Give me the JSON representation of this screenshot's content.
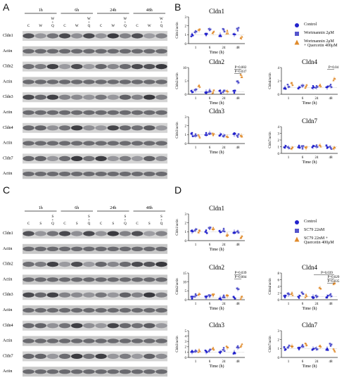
{
  "panels": {
    "A": "A",
    "B": "B",
    "C": "C",
    "D": "D"
  },
  "blotA": {
    "timepoints": [
      "1h",
      "6h",
      "24h",
      "48h"
    ],
    "lanes": [
      "C",
      "W",
      "W\n+\nQ",
      "C",
      "W",
      "W\n+\nQ",
      "C",
      "W",
      "W\n+\nQ",
      "C",
      "W",
      "W\n+\nQ"
    ],
    "rows": [
      "Cldn1",
      "Actin",
      "Cldn2",
      "Actin",
      "Cldn3",
      "Actin",
      "Cldn4",
      "Actin",
      "Cldn7",
      "Actin"
    ]
  },
  "blotC": {
    "timepoints": [
      "1h",
      "6h",
      "24h",
      "48h"
    ],
    "lanes": [
      "C",
      "S",
      "S\n+\nQ",
      "C",
      "S",
      "S\n+\nQ",
      "C",
      "S",
      "S\n+\nQ",
      "C",
      "S",
      "S\n+\nQ"
    ],
    "rows": [
      "Cldn1",
      "Actin",
      "Cldn2",
      "Actin",
      "Cldn3",
      "Actin",
      "Cldn4",
      "Actin",
      "Cldn7",
      "Actin"
    ]
  },
  "legendB": [
    {
      "label": "Control",
      "color": "#2222cc",
      "shape": "circle"
    },
    {
      "label": "Wortmannin 2μM",
      "color": "#5555cc",
      "shape": "square"
    },
    {
      "label": "Wortmannin 2μM\n+ Quercetin 400μM",
      "color": "#e08a2a",
      "shape": "triangle"
    }
  ],
  "legendD": [
    {
      "label": "Control",
      "color": "#2222cc",
      "shape": "circle"
    },
    {
      "label": "SC79 22nM",
      "color": "#5555cc",
      "shape": "square"
    },
    {
      "label": "SC79 22nM +\nQuercetin 400μM",
      "color": "#e08a2a",
      "shape": "triangle"
    }
  ],
  "chart_data": [
    {
      "id": "B-Cldn1",
      "type": "scatter",
      "title": "Cldn1",
      "xlabel": "Time (h)",
      "ylabel": "Cldn1/actin",
      "categories": [
        "1",
        "6",
        "24",
        "48"
      ],
      "ylim": [
        0,
        3
      ],
      "yticks": [
        0,
        1,
        2,
        3
      ],
      "series": [
        {
          "name": "Control",
          "values": [
            1.0,
            1.0,
            1.0,
            1.0
          ]
        },
        {
          "name": "Wortmannin 2μM",
          "values": [
            1.3,
            1.6,
            1.5,
            1.6
          ]
        },
        {
          "name": "Wortmannin 2μM + Quercetin 400μM",
          "values": [
            1.5,
            1.2,
            1.3,
            0.7
          ]
        }
      ],
      "annotations": []
    },
    {
      "id": "B-Cldn2",
      "type": "scatter",
      "title": "Cldn2",
      "xlabel": "Time (h)",
      "ylabel": "Cldn2/actin",
      "categories": [
        "1",
        "6",
        "24",
        "48"
      ],
      "ylim": [
        0,
        10
      ],
      "yticks": [
        0,
        5,
        10
      ],
      "series": [
        {
          "name": "Control",
          "values": [
            1.0,
            1.0,
            1.0,
            1.0
          ]
        },
        {
          "name": "Wortmannin 2μM",
          "values": [
            1.5,
            1.5,
            1.0,
            4.5
          ]
        },
        {
          "name": "Wortmannin 2μM + Quercetin 400μM",
          "values": [
            3.0,
            1.0,
            1.0,
            7.0
          ]
        }
      ],
      "annotations": [
        "P=0.002",
        "P=0.037"
      ]
    },
    {
      "id": "B-Cldn4",
      "type": "scatter",
      "title": "Cldn4",
      "xlabel": "Time (h)",
      "ylabel": "Cldn4/actin",
      "categories": [
        "1",
        "6",
        "24",
        "48"
      ],
      "ylim": [
        0,
        4
      ],
      "yticks": [
        0,
        2,
        4
      ],
      "series": [
        {
          "name": "Control",
          "values": [
            1.0,
            1.0,
            1.0,
            1.0
          ]
        },
        {
          "name": "Wortmannin 2μM",
          "values": [
            1.2,
            1.3,
            1.0,
            1.2
          ]
        },
        {
          "name": "Wortmannin 2μM + Quercetin 400μM",
          "values": [
            1.5,
            1.2,
            1.3,
            2.3
          ]
        }
      ],
      "annotations": [
        "P=0.04"
      ]
    },
    {
      "id": "B-Cldn3",
      "type": "scatter",
      "title": "Cldn3",
      "xlabel": "Time (h)",
      "ylabel": "Cldn3/actin",
      "categories": [
        "1",
        "6",
        "24",
        "48"
      ],
      "ylim": [
        0,
        3
      ],
      "yticks": [
        0,
        1,
        2,
        3
      ],
      "series": [
        {
          "name": "Control",
          "values": [
            1.0,
            1.0,
            1.0,
            1.0
          ]
        },
        {
          "name": "Wortmannin 2μM",
          "values": [
            0.9,
            1.2,
            0.9,
            0.9
          ]
        },
        {
          "name": "Wortmannin 2μM + Quercetin 400μM",
          "values": [
            0.8,
            1.0,
            0.8,
            0.9
          ]
        }
      ],
      "annotations": []
    },
    {
      "id": "B-Cldn7",
      "type": "scatter",
      "title": "Cldn7",
      "xlabel": "Time (h)",
      "ylabel": "Cldn7/actin",
      "categories": [
        "1",
        "6",
        "24",
        "48"
      ],
      "ylim": [
        0,
        4
      ],
      "yticks": [
        0,
        1,
        2,
        3,
        4
      ],
      "series": [
        {
          "name": "Control",
          "values": [
            1.0,
            1.0,
            1.0,
            1.0
          ]
        },
        {
          "name": "Wortmannin 2μM",
          "values": [
            0.9,
            0.9,
            1.0,
            0.9
          ]
        },
        {
          "name": "Wortmannin 2μM + Quercetin 400μM",
          "values": [
            0.8,
            0.8,
            1.2,
            0.8
          ]
        }
      ],
      "annotations": []
    },
    {
      "id": "D-Cldn1",
      "type": "scatter",
      "title": "Cldn1",
      "xlabel": "Time (h)",
      "ylabel": "Cldn1/actin",
      "categories": [
        "1",
        "6",
        "24",
        "48"
      ],
      "ylim": [
        0,
        3
      ],
      "yticks": [
        0,
        1,
        2,
        3
      ],
      "series": [
        {
          "name": "Control",
          "values": [
            1.0,
            1.0,
            1.0,
            1.0
          ]
        },
        {
          "name": "SC79 22nM",
          "values": [
            1.2,
            1.4,
            1.2,
            1.0
          ]
        },
        {
          "name": "SC79 22nM + Quercetin 400μM",
          "values": [
            1.0,
            1.3,
            0.7,
            0.4
          ]
        }
      ],
      "annotations": []
    },
    {
      "id": "D-Cldn2",
      "type": "scatter",
      "title": "Cldn2",
      "xlabel": "Time (h)",
      "ylabel": "Cldn2/actin",
      "categories": [
        "1",
        "6",
        "24",
        "48"
      ],
      "ylim": [
        0,
        15
      ],
      "yticks": [
        0,
        5,
        10,
        15
      ],
      "series": [
        {
          "name": "Control",
          "values": [
            1.0,
            1.0,
            1.0,
            1.0
          ]
        },
        {
          "name": "SC79 22nM",
          "values": [
            2.5,
            2.0,
            2.0,
            6.0
          ]
        },
        {
          "name": "SC79 22nM + Quercetin 400μM",
          "values": [
            3.0,
            2.5,
            2.0,
            1.0
          ]
        }
      ],
      "annotations": [
        "P=0.039",
        "P=0.004"
      ]
    },
    {
      "id": "D-Cldn4",
      "type": "scatter",
      "title": "Cldn4",
      "xlabel": "Time (h)",
      "ylabel": "Cldn4/actin",
      "categories": [
        "1",
        "6",
        "24",
        "48"
      ],
      "ylim": [
        0,
        8
      ],
      "yticks": [
        0,
        2,
        4,
        6,
        8
      ],
      "series": [
        {
          "name": "Control",
          "values": [
            1.0,
            1.0,
            1.0,
            1.0
          ]
        },
        {
          "name": "SC79 22nM",
          "values": [
            1.5,
            2.0,
            1.0,
            1.2
          ]
        },
        {
          "name": "SC79 22nM + Quercetin 400μM",
          "values": [
            1.8,
            1.2,
            3.5,
            5.0
          ]
        }
      ],
      "annotations": [
        "P=0.039",
        "P=0.029",
        "P=0.035"
      ]
    },
    {
      "id": "D-Cldn3",
      "type": "scatter",
      "title": "Cldn3",
      "xlabel": "Time (h)",
      "ylabel": "Cldn3/actin",
      "categories": [
        "1",
        "6",
        "24",
        "48"
      ],
      "ylim": [
        0,
        5
      ],
      "yticks": [
        0,
        1,
        2,
        3,
        4,
        5
      ],
      "series": [
        {
          "name": "Control",
          "values": [
            1.0,
            1.0,
            1.0,
            1.0
          ]
        },
        {
          "name": "SC79 22nM",
          "values": [
            1.2,
            1.3,
            1.5,
            1.8
          ]
        },
        {
          "name": "SC79 22nM + Quercetin 400μM",
          "values": [
            1.3,
            1.6,
            1.8,
            2.2
          ]
        }
      ],
      "annotations": []
    },
    {
      "id": "D-Cldn7",
      "type": "scatter",
      "title": "Cldn7",
      "xlabel": "Time (h)",
      "ylabel": "Cldn7/actin",
      "categories": [
        "1",
        "6",
        "24",
        "48"
      ],
      "ylim": [
        0,
        3
      ],
      "yticks": [
        0,
        1,
        2,
        3
      ],
      "series": [
        {
          "name": "Control",
          "values": [
            1.0,
            1.0,
            1.0,
            1.0
          ]
        },
        {
          "name": "SC79 22nM",
          "values": [
            1.2,
            1.3,
            1.0,
            1.4
          ]
        },
        {
          "name": "SC79 22nM + Quercetin 400μM",
          "values": [
            1.3,
            1.4,
            1.2,
            0.8
          ]
        }
      ],
      "annotations": []
    }
  ]
}
